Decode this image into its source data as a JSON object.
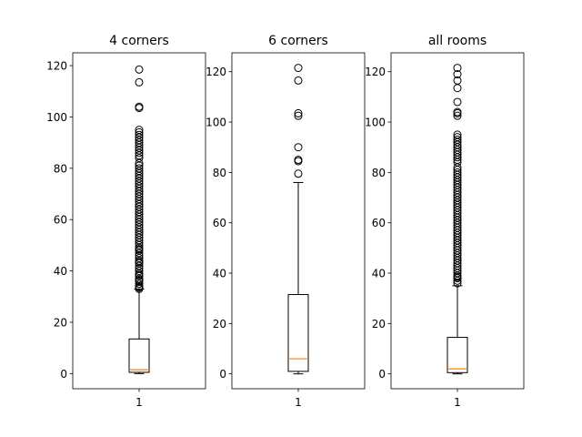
{
  "chart_data": [
    {
      "type": "boxplot",
      "title": "4 corners",
      "xtick_labels": [
        "1"
      ],
      "ylim": [
        -5.9,
        125.0
      ],
      "yticks": [
        0,
        20,
        40,
        60,
        80,
        100,
        120
      ],
      "grid": false,
      "box": {
        "whisker_low": 0,
        "q1": 0.5,
        "median": 1.5,
        "q3": 13.5,
        "whisker_high": 33
      },
      "outliers": [
        33,
        33.5,
        34,
        35,
        36,
        36.5,
        37,
        38,
        38.5,
        39,
        40,
        41,
        42,
        43,
        43.5,
        44,
        45,
        46,
        47,
        48,
        48.5,
        49,
        50,
        51,
        52,
        53,
        54,
        55,
        56,
        57,
        58,
        59,
        60,
        61,
        62,
        63,
        64,
        65,
        66,
        67,
        68,
        69,
        70,
        71,
        72,
        73,
        74,
        75,
        76,
        77,
        78,
        79,
        80,
        81,
        82,
        84,
        85,
        86,
        87,
        88,
        89,
        90,
        91,
        92,
        93,
        94,
        95,
        103.5,
        104,
        113.5,
        118.5
      ]
    },
    {
      "type": "boxplot",
      "title": "6 corners",
      "xtick_labels": [
        "1"
      ],
      "ylim": [
        -5.9,
        127.5
      ],
      "yticks": [
        0,
        20,
        40,
        60,
        80,
        100,
        120
      ],
      "grid": false,
      "box": {
        "whisker_low": 0,
        "q1": 1,
        "median": 6,
        "q3": 31.5,
        "whisker_high": 76
      },
      "outliers": [
        79.5,
        84.5,
        85,
        90,
        102.5,
        103.5,
        116.5,
        121.5
      ]
    },
    {
      "type": "boxplot",
      "title": "all rooms",
      "xtick_labels": [
        "1"
      ],
      "ylim": [
        -5.9,
        127.5
      ],
      "yticks": [
        0,
        20,
        40,
        60,
        80,
        100,
        120
      ],
      "grid": false,
      "box": {
        "whisker_low": 0,
        "q1": 0.5,
        "median": 2,
        "q3": 14.5,
        "whisker_high": 35
      },
      "outliers": [
        36,
        37,
        38,
        38.5,
        39,
        40,
        41,
        42,
        43,
        44,
        45,
        46,
        47,
        48,
        49,
        50,
        51,
        52,
        53,
        54,
        55,
        56,
        57,
        58,
        59,
        60,
        61,
        62,
        63,
        64,
        65,
        66,
        67,
        68,
        69,
        70,
        71,
        72,
        73,
        74,
        75,
        76,
        77,
        78,
        79,
        80,
        81,
        82,
        84,
        85,
        86,
        87,
        88,
        89,
        90,
        91,
        92,
        93,
        94,
        95,
        102.5,
        103.5,
        104,
        108,
        113.5,
        116.5,
        119,
        121.5
      ]
    }
  ],
  "colors": {
    "box": "#000000",
    "median": "#ff7f0e",
    "outlier_edge": "#000000",
    "background": "#ffffff"
  }
}
